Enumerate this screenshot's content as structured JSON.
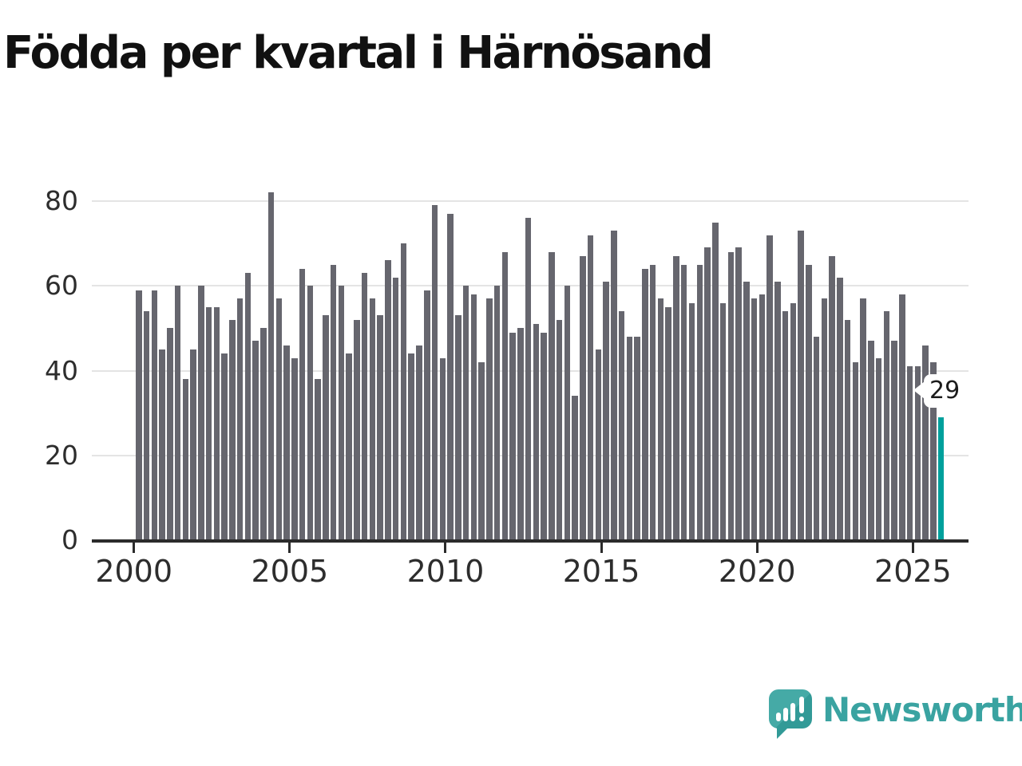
{
  "title": "Födda per kvartal i Härnösand",
  "chart_data": {
    "type": "bar",
    "title": "Födda per kvartal i Härnösand",
    "x_start": "2000-Q1",
    "x_end": "2025-Q4",
    "frequency": "quarterly",
    "x_tick_labels": [
      "2000",
      "2005",
      "2010",
      "2015",
      "2020",
      "2025"
    ],
    "y_ticks": [
      0,
      20,
      40,
      60,
      80
    ],
    "ylim": [
      0,
      85
    ],
    "grid": "horizontal",
    "legend": "none",
    "values": [
      59,
      54,
      59,
      45,
      50,
      60,
      38,
      45,
      60,
      55,
      55,
      44,
      52,
      57,
      63,
      47,
      50,
      82,
      57,
      46,
      43,
      64,
      60,
      38,
      53,
      65,
      60,
      44,
      52,
      63,
      57,
      53,
      66,
      62,
      70,
      44,
      46,
      59,
      79,
      43,
      77,
      53,
      60,
      58,
      42,
      57,
      60,
      68,
      49,
      50,
      76,
      51,
      49,
      68,
      52,
      60,
      34,
      67,
      72,
      45,
      61,
      73,
      54,
      48,
      48,
      64,
      65,
      57,
      55,
      67,
      65,
      56,
      65,
      69,
      75,
      56,
      68,
      69,
      61,
      57,
      58,
      72,
      61,
      54,
      56,
      73,
      65,
      48,
      57,
      67,
      62,
      52,
      42,
      57,
      47,
      43,
      54,
      47,
      58,
      41,
      41,
      46,
      42,
      29
    ],
    "highlight": {
      "position": "last",
      "quarter": "2025-Q4",
      "value": 29,
      "label": "29"
    }
  },
  "annotation": {
    "label": "29"
  },
  "colors": {
    "bar": "#66666e",
    "highlight": "#00a09c",
    "axis": "#2b2b2b",
    "gridline": "#e4e4e4",
    "title_text": "#111111",
    "tick_text": "#2d2d2d",
    "logo_teal": "#3aa3a1"
  },
  "logo": {
    "text": "Newsworthy",
    "icon": "newsworthy-chart-bubble-icon"
  }
}
